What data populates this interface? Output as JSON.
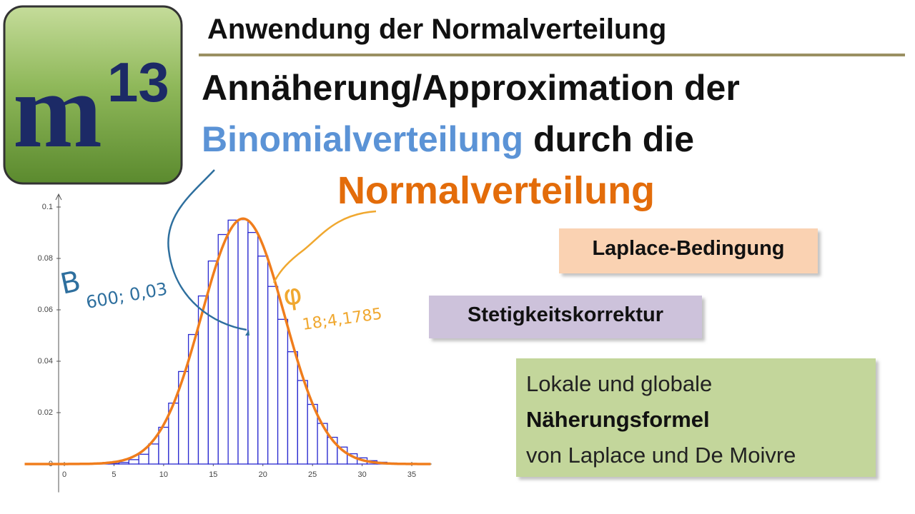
{
  "logo": {
    "base": "m",
    "exponent": "13"
  },
  "header": {
    "title": "Anwendung der Normalverteilung"
  },
  "heading": {
    "line1": "Annäherung/Approximation der",
    "line2_highlight": "Binomialverteilung",
    "line2_rest": "durch die",
    "line3": "Normalverteilung"
  },
  "boxes": [
    {
      "text": "Laplace-Bedingung"
    },
    {
      "text": "Stetigkeitskorrektur"
    },
    {
      "lines": [
        "Lokale und globale",
        "Näherungsformel",
        "von Laplace und De Moivre"
      ]
    }
  ],
  "chart_data": {
    "type": "bar",
    "x": [
      0,
      1,
      2,
      3,
      4,
      5,
      6,
      7,
      8,
      9,
      10,
      11,
      12,
      13,
      14,
      15,
      16,
      17,
      18,
      19,
      20,
      21,
      22,
      23,
      24,
      25,
      26,
      27,
      28,
      29,
      30,
      31,
      32,
      33,
      34,
      35
    ],
    "values": [
      0,
      0,
      0,
      0,
      0.0001,
      0.0002,
      0.0006,
      0.0017,
      0.0038,
      0.0078,
      0.0143,
      0.0237,
      0.036,
      0.0504,
      0.0654,
      0.079,
      0.0893,
      0.0949,
      0.0951,
      0.0901,
      0.0809,
      0.0691,
      0.0563,
      0.0437,
      0.0325,
      0.0232,
      0.0158,
      0.0104,
      0.0066,
      0.004,
      0.0024,
      0.0013,
      0.0007,
      0.0004,
      0.0002,
      0.0001
    ],
    "color": "#2a2ad0",
    "curve": {
      "mean": 18,
      "sd": 4.1785,
      "color": "#f07d1c"
    },
    "xlim": [
      -4,
      37
    ],
    "ylim": [
      -0.011,
      0.105
    ],
    "xticks": [
      0,
      5,
      10,
      15,
      20,
      25,
      30,
      35
    ],
    "yticks": [
      0,
      0.02,
      0.04,
      0.06,
      0.08,
      0.1
    ],
    "grid": false,
    "annotations": [
      {
        "symbol": "B",
        "subscript": "600; 0,03"
      },
      {
        "symbol": "φ",
        "subscript": "18;4,1785"
      }
    ]
  }
}
